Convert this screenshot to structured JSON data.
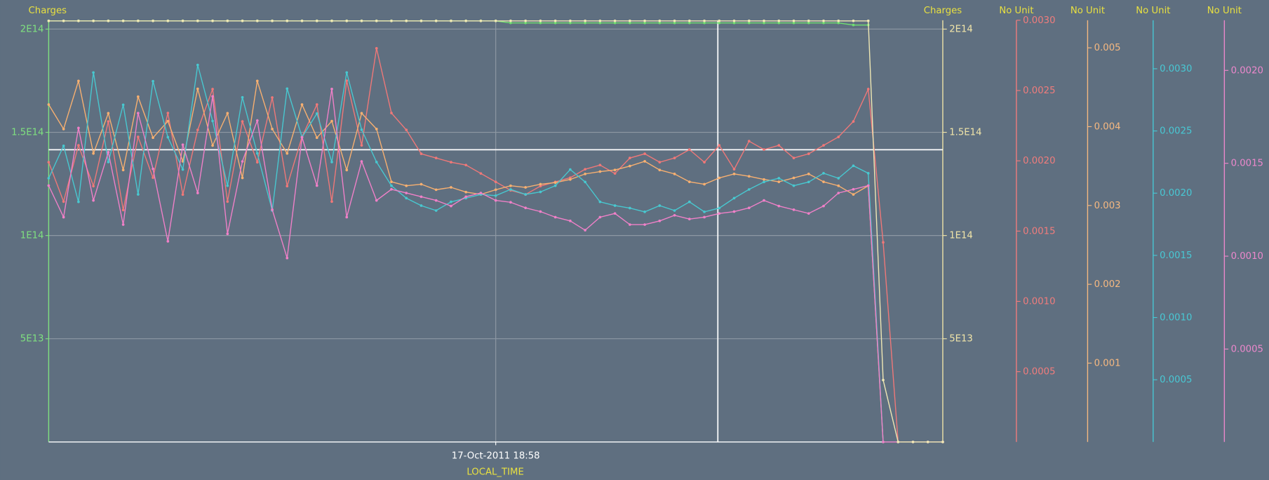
{
  "chart_data": {
    "type": "line",
    "x_label": "LOCAL_TIME",
    "grid": true,
    "categories": [
      null,
      null,
      null,
      null,
      null,
      null,
      null,
      null,
      null,
      null,
      null,
      null,
      null,
      null,
      null,
      null,
      null,
      null,
      null,
      null,
      null,
      null,
      null,
      null,
      null,
      null,
      null,
      null,
      null,
      null,
      "17-Oct-2011 18:58",
      null,
      null,
      null,
      null,
      null,
      null,
      null,
      null,
      null,
      null,
      null,
      null,
      null,
      null,
      null,
      null,
      null,
      null,
      null,
      null,
      null,
      null,
      null,
      null,
      null,
      null,
      null,
      null,
      null,
      null
    ],
    "axes": [
      {
        "title": "Charges",
        "color": "#7fe07f",
        "title_color": "#e8e040",
        "ylim": [
          0,
          204300000000000.0
        ],
        "yticks": [
          {
            "value": 50000000000000.0,
            "label": "5E13"
          },
          {
            "value": 100000000000000.0,
            "label": "1E14"
          },
          {
            "value": 150000000000000.0,
            "label": "1.5E14"
          },
          {
            "value": 200000000000000.0,
            "label": "2E14"
          }
        ]
      },
      {
        "title": "Charges",
        "color": "#f0e4a8",
        "title_color": "#e8e040",
        "ylim": [
          0,
          204300000000000.0
        ],
        "yticks": [
          {
            "value": 50000000000000.0,
            "label": "5E13"
          },
          {
            "value": 100000000000000.0,
            "label": "1E14"
          },
          {
            "value": 150000000000000.0,
            "label": "1.5E14"
          },
          {
            "value": 200000000000000.0,
            "label": "2E14"
          }
        ]
      },
      {
        "title": "No Unit",
        "color": "#f07c7c",
        "title_color": "#e8e040",
        "ylim": [
          0,
          0.003
        ],
        "yticks": [
          0.0005,
          {
            "value": 0.001,
            "label": "0.0010"
          },
          0.0015,
          {
            "value": 0.002,
            "label": "0.0020"
          },
          0.0025,
          {
            "value": 0.003,
            "label": "0.0030"
          }
        ]
      },
      {
        "title": "No Unit",
        "color": "#f5b880",
        "title_color": "#e8e040",
        "ylim": [
          0,
          0.00535
        ],
        "yticks": [
          0.001,
          0.002,
          0.003,
          0.004,
          0.005
        ]
      },
      {
        "title": "No Unit",
        "color": "#48c8d4",
        "title_color": "#e8e040",
        "ylim": [
          0,
          0.00339
        ],
        "yticks": [
          0.0005,
          {
            "value": 0.001,
            "label": "0.0010"
          },
          0.0015,
          {
            "value": 0.002,
            "label": "0.0020"
          },
          0.0025,
          {
            "value": 0.003,
            "label": "0.0030"
          }
        ]
      },
      {
        "title": "No Unit",
        "color": "#ec88cc",
        "title_color": "#e8e040",
        "ylim": [
          0,
          0.00227
        ],
        "yticks": [
          0.0005,
          {
            "value": 0.001,
            "label": "0.0010"
          },
          0.0015,
          {
            "value": 0.002,
            "label": "0.0020"
          }
        ]
      }
    ],
    "series": [
      {
        "axis": 0,
        "color": "#70e070",
        "values": [
          204000000000000.0,
          204000000000000.0,
          204000000000000.0,
          204000000000000.0,
          204000000000000.0,
          204000000000000.0,
          204000000000000.0,
          204000000000000.0,
          204000000000000.0,
          204000000000000.0,
          204000000000000.0,
          204000000000000.0,
          204000000000000.0,
          204000000000000.0,
          204000000000000.0,
          204000000000000.0,
          204000000000000.0,
          204000000000000.0,
          204000000000000.0,
          204000000000000.0,
          204000000000000.0,
          204000000000000.0,
          204000000000000.0,
          204000000000000.0,
          204000000000000.0,
          204000000000000.0,
          204000000000000.0,
          204000000000000.0,
          204000000000000.0,
          204000000000000.0,
          204000000000000.0,
          203000000000000.0,
          203000000000000.0,
          203000000000000.0,
          203000000000000.0,
          203000000000000.0,
          203000000000000.0,
          203000000000000.0,
          203000000000000.0,
          203000000000000.0,
          203000000000000.0,
          203000000000000.0,
          203000000000000.0,
          203000000000000.0,
          203000000000000.0,
          203000000000000.0,
          203000000000000.0,
          203000000000000.0,
          203000000000000.0,
          203000000000000.0,
          203000000000000.0,
          203000000000000.0,
          203000000000000.0,
          203000000000000.0,
          202000000000000.0,
          202000000000000.0,
          null,
          null,
          null,
          null,
          null
        ]
      },
      {
        "axis": 1,
        "color": "#f0e8b4",
        "values": [
          204000000000000.0,
          204000000000000.0,
          204000000000000.0,
          204000000000000.0,
          204000000000000.0,
          204000000000000.0,
          204000000000000.0,
          204000000000000.0,
          204000000000000.0,
          204000000000000.0,
          204000000000000.0,
          204000000000000.0,
          204000000000000.0,
          204000000000000.0,
          204000000000000.0,
          204000000000000.0,
          204000000000000.0,
          204000000000000.0,
          204000000000000.0,
          204000000000000.0,
          204000000000000.0,
          204000000000000.0,
          204000000000000.0,
          204000000000000.0,
          204000000000000.0,
          204000000000000.0,
          204000000000000.0,
          204000000000000.0,
          204000000000000.0,
          204000000000000.0,
          204000000000000.0,
          204000000000000.0,
          204000000000000.0,
          204000000000000.0,
          204000000000000.0,
          204000000000000.0,
          204000000000000.0,
          204000000000000.0,
          204000000000000.0,
          204000000000000.0,
          204000000000000.0,
          204000000000000.0,
          204000000000000.0,
          204000000000000.0,
          204000000000000.0,
          204000000000000.0,
          204000000000000.0,
          204000000000000.0,
          204000000000000.0,
          204000000000000.0,
          204000000000000.0,
          204000000000000.0,
          204000000000000.0,
          204000000000000.0,
          204000000000000.0,
          204000000000000.0,
          30000000000000.0,
          0,
          0,
          0,
          0
        ]
      },
      {
        "axis": 2,
        "color": "#f07878",
        "values": [
          0.00199,
          0.00171,
          0.00211,
          0.00182,
          0.00228,
          0.00165,
          0.00217,
          0.00188,
          0.00234,
          0.00176,
          0.00222,
          0.00251,
          0.00171,
          0.00228,
          0.00199,
          0.00245,
          0.00182,
          0.00217,
          0.0024,
          0.00171,
          0.00257,
          0.00211,
          0.0028,
          0.00234,
          0.00222,
          0.00205,
          0.00202,
          0.00199,
          0.00197,
          0.00191,
          0.00185,
          0.00179,
          0.00176,
          0.00182,
          0.00185,
          0.00188,
          0.00194,
          0.00197,
          0.00191,
          0.00202,
          0.00205,
          0.00199,
          0.00202,
          0.00208,
          0.00199,
          0.00211,
          0.00194,
          0.00214,
          0.00208,
          0.00211,
          0.00202,
          0.00205,
          0.00211,
          0.00217,
          0.00228,
          0.00251,
          0.00142,
          0,
          0,
          0,
          0
        ]
      },
      {
        "axis": 3,
        "color": "#f8b070",
        "values": [
          0.00428,
          0.00397,
          0.00458,
          0.00366,
          0.00417,
          0.00345,
          0.00438,
          0.00386,
          0.00407,
          0.00356,
          0.00448,
          0.00376,
          0.00417,
          0.00335,
          0.00458,
          0.00397,
          0.00366,
          0.00428,
          0.00386,
          0.00407,
          0.00345,
          0.00417,
          0.00397,
          0.0033,
          0.00325,
          0.00327,
          0.0032,
          0.00323,
          0.00317,
          0.00314,
          0.0032,
          0.00325,
          0.00323,
          0.00327,
          0.00329,
          0.00333,
          0.0034,
          0.00343,
          0.00345,
          0.0035,
          0.00356,
          0.00345,
          0.0034,
          0.0033,
          0.00327,
          0.00335,
          0.0034,
          0.00337,
          0.00333,
          0.0033,
          0.00335,
          0.0034,
          0.0033,
          0.00325,
          0.00314,
          0.00325,
          0,
          0,
          0,
          0,
          0
        ]
      },
      {
        "axis": 4,
        "color": "#48c8d0",
        "values": [
          0.00212,
          0.00238,
          0.00193,
          0.00297,
          0.00225,
          0.00271,
          0.00199,
          0.0029,
          0.00245,
          0.00219,
          0.00303,
          0.00258,
          0.00206,
          0.00277,
          0.00232,
          0.00186,
          0.00284,
          0.00245,
          0.00264,
          0.00225,
          0.00297,
          0.00251,
          0.00225,
          0.00206,
          0.00196,
          0.0019,
          0.00186,
          0.00193,
          0.00196,
          0.00199,
          0.00198,
          0.00203,
          0.00199,
          0.00201,
          0.00206,
          0.00219,
          0.00209,
          0.00193,
          0.0019,
          0.00188,
          0.00185,
          0.0019,
          0.00186,
          0.00193,
          0.00185,
          0.00188,
          0.00196,
          0.00203,
          0.00209,
          0.00212,
          0.00206,
          0.00209,
          0.00216,
          0.00212,
          0.00222,
          0.00216,
          0,
          0,
          0,
          0,
          0
        ]
      },
      {
        "axis": 5,
        "color": "#f080c8",
        "values": [
          0.00138,
          0.00121,
          0.00169,
          0.0013,
          0.00156,
          0.00117,
          0.00177,
          0.00147,
          0.00108,
          0.0016,
          0.00134,
          0.00186,
          0.00112,
          0.00151,
          0.00173,
          0.00125,
          0.00099,
          0.00164,
          0.00138,
          0.0019,
          0.00121,
          0.00151,
          0.0013,
          0.00136,
          0.00134,
          0.00132,
          0.0013,
          0.00127,
          0.00132,
          0.00134,
          0.0013,
          0.00129,
          0.00126,
          0.00124,
          0.00121,
          0.00119,
          0.00114,
          0.00121,
          0.00123,
          0.00117,
          0.00117,
          0.00119,
          0.00122,
          0.0012,
          0.00121,
          0.00123,
          0.00124,
          0.00126,
          0.0013,
          0.00127,
          0.00125,
          0.00123,
          0.00127,
          0.00134,
          0.00136,
          0.00138,
          0,
          0,
          0,
          0,
          0
        ]
      }
    ]
  }
}
